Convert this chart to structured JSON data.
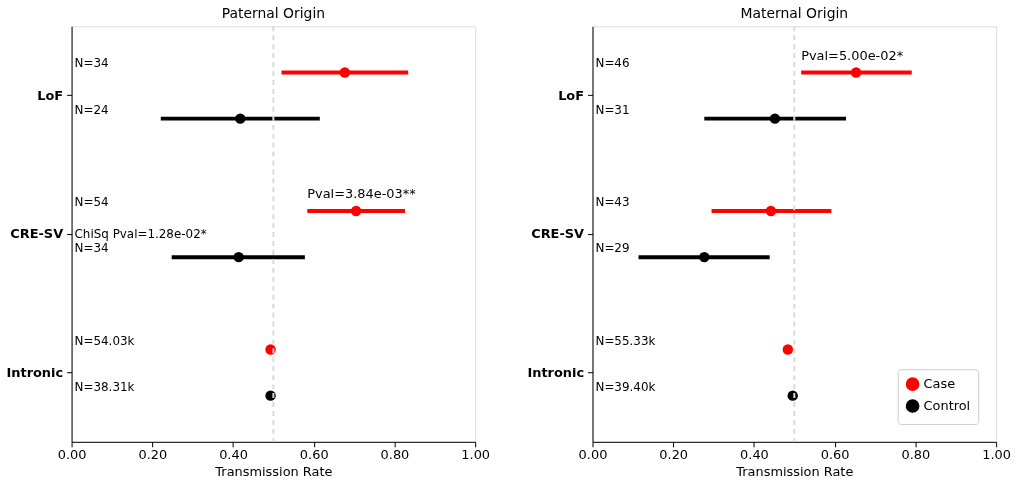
{
  "chart_data": [
    {
      "type": "scatter",
      "orientation": "horizontal",
      "title": "Paternal Origin",
      "xlabel": "Transmission Rate",
      "categories": [
        "LoF",
        "CRE-SV",
        "Intronic"
      ],
      "series": [
        {
          "color": "#ff0000",
          "values": [
            0.677,
            0.705,
            0.493
          ],
          "errors": [
            [
              0.52,
              0.834
            ],
            [
              0.584,
              0.826
            ],
            null
          ]
        },
        {
          "color": "#000000",
          "values": [
            0.418,
            0.414,
            0.493
          ],
          "errors": [
            [
              0.221,
              0.615
            ],
            [
              0.248,
              0.578
            ],
            null
          ]
        }
      ],
      "xlim": [
        0,
        1
      ],
      "xticks": [
        {
          "value": 0,
          "label": "0.00"
        },
        {
          "value": 0.2,
          "label": "0.20"
        },
        {
          "value": 0.4,
          "label": "0.40"
        },
        {
          "value": 0.6,
          "label": "0.60"
        },
        {
          "value": 0.8,
          "label": "0.80"
        },
        {
          "value": 1,
          "label": "1.00"
        }
      ],
      "ref_lines": [
        {
          "axis": "x",
          "value": 0.5,
          "color": "#d9d9d9",
          "line_style": "dashed"
        }
      ],
      "annotations": [
        "N=34",
        "N=24",
        "N=54",
        "N=34",
        "N=54.03k",
        "N=38.31k",
        "Pval=3.84e-03**",
        "ChiSq Pval=1.28e-02*"
      ],
      "marker": "circle",
      "grid": false,
      "legend": false
    },
    {
      "type": "scatter",
      "orientation": "horizontal",
      "title": "Maternal Origin",
      "xlabel": "Transmission Rate",
      "categories": [
        "LoF",
        "CRE-SV",
        "Intronic"
      ],
      "series": [
        {
          "name": "Case",
          "color": "#ff0000",
          "values": [
            0.653,
            0.442,
            0.484
          ],
          "errors": [
            [
              0.517,
              0.791
            ],
            [
              0.295,
              0.592
            ],
            null
          ]
        },
        {
          "name": "Control",
          "color": "#000000",
          "values": [
            0.452,
            0.277,
            0.496
          ],
          "errors": [
            [
              0.277,
              0.628
            ],
            [
              0.114,
              0.439
            ],
            null
          ]
        }
      ],
      "xlim": [
        0,
        1
      ],
      "xticks": [
        {
          "value": 0,
          "label": "0.00"
        },
        {
          "value": 0.2,
          "label": "0.20"
        },
        {
          "value": 0.4,
          "label": "0.40"
        },
        {
          "value": 0.6,
          "label": "0.60"
        },
        {
          "value": 0.8,
          "label": "0.80"
        },
        {
          "value": 1,
          "label": "1.00"
        }
      ],
      "ref_lines": [
        {
          "axis": "x",
          "value": 0.5,
          "color": "#d9d9d9",
          "line_style": "dashed"
        }
      ],
      "annotations": [
        "N=46",
        "N=31",
        "N=43",
        "N=29",
        "N=55.33k",
        "N=39.40k",
        "Pval=5.00e-02*"
      ],
      "marker": "circle",
      "grid": false,
      "legend": "bottom right"
    }
  ]
}
